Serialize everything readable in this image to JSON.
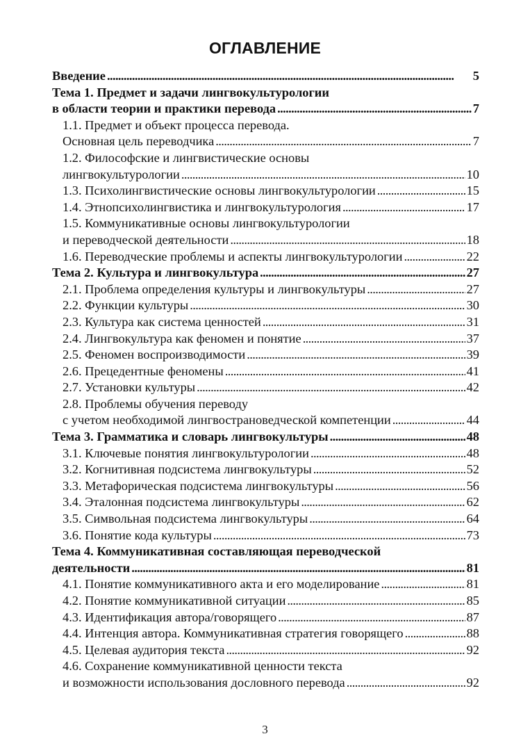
{
  "title": "ОГЛАВЛЕНИЕ",
  "entries": [
    {
      "level": 1,
      "lines": [
        "Введение"
      ],
      "page": "5"
    },
    {
      "level": 1,
      "lines": [
        "Тема 1. Предмет и задачи лингвокультурологии",
        "в области теории и практики перевода"
      ],
      "page": "7"
    },
    {
      "level": 2,
      "lines": [
        "1.1. Предмет и объект процесса перевода.",
        "Основная цель переводчика"
      ],
      "page": "7"
    },
    {
      "level": 2,
      "lines": [
        "1.2. Философские и лингвистические основы",
        "лингвокультурологии"
      ],
      "page": "10"
    },
    {
      "level": 2,
      "lines": [
        "1.3. Психолингвистические основы лингвокультурологии"
      ],
      "page": "15"
    },
    {
      "level": 2,
      "lines": [
        "1.4. Этнопсихолингвистика и лингвокультурология"
      ],
      "page": "17"
    },
    {
      "level": 2,
      "lines": [
        "1.5. Коммуникативные основы лингвокультурологии",
        "и переводческой деятельности"
      ],
      "page": "18"
    },
    {
      "level": 2,
      "lines": [
        "1.6. Переводческие проблемы и аспекты лингвокультурологии"
      ],
      "page": "22"
    },
    {
      "level": 1,
      "lines": [
        "Тема 2. Культура и лингвокультура"
      ],
      "page": "27"
    },
    {
      "level": 2,
      "lines": [
        "2.1. Проблема определения культуры и лингвокультуры"
      ],
      "page": "27"
    },
    {
      "level": 2,
      "lines": [
        "2.2. Функции культуры"
      ],
      "page": "30"
    },
    {
      "level": 2,
      "lines": [
        "2.3. Культура как система ценностей"
      ],
      "page": "31"
    },
    {
      "level": 2,
      "lines": [
        "2.4. Лингвокультура как феномен и понятие"
      ],
      "page": "37"
    },
    {
      "level": 2,
      "lines": [
        "2.5. Феномен воспроизводимости"
      ],
      "page": "39"
    },
    {
      "level": 2,
      "lines": [
        "2.6. Прецедентные феномены"
      ],
      "page": "41"
    },
    {
      "level": 2,
      "lines": [
        "2.7. Установки культуры"
      ],
      "page": "42"
    },
    {
      "level": 2,
      "lines": [
        "2.8. Проблемы обучения переводу",
        "с учетом необходимой лингвострановедческой компетенции"
      ],
      "page": "44"
    },
    {
      "level": 1,
      "lines": [
        "Тема 3. Грамматика и словарь лингвокультуры"
      ],
      "page": "48"
    },
    {
      "level": 2,
      "lines": [
        "3.1. Ключевые понятия лингвокультурологии"
      ],
      "page": "48"
    },
    {
      "level": 2,
      "lines": [
        "3.2. Когнитивная подсистема лингвокультуры"
      ],
      "page": "52"
    },
    {
      "level": 2,
      "lines": [
        "3.3. Метафорическая подсистема лингвокультуры"
      ],
      "page": "56"
    },
    {
      "level": 2,
      "lines": [
        "3.4. Эталонная подсистема лингвокультуры"
      ],
      "page": "62"
    },
    {
      "level": 2,
      "lines": [
        "3.5. Символьная подсистема лингвокультуры"
      ],
      "page": "64"
    },
    {
      "level": 2,
      "lines": [
        "3.6. Понятие кода культуры"
      ],
      "page": "73"
    },
    {
      "level": 1,
      "lines": [
        "Тема 4. Коммуникативная составляющая переводческой",
        "деятельности"
      ],
      "page": "81"
    },
    {
      "level": 2,
      "lines": [
        "4.1. Понятие коммуникативного акта и его моделирование"
      ],
      "page": "81"
    },
    {
      "level": 2,
      "lines": [
        "4.2. Понятие коммуникативной ситуации"
      ],
      "page": "85"
    },
    {
      "level": 2,
      "lines": [
        "4.3. Идентификация автора/говорящего"
      ],
      "page": "87"
    },
    {
      "level": 2,
      "lines": [
        "4.4. Интенция автора. Коммуникативная стратегия говорящего"
      ],
      "page": "88"
    },
    {
      "level": 2,
      "lines": [
        "4.5. Целевая аудитория текста"
      ],
      "page": "92"
    },
    {
      "level": 2,
      "lines": [
        "4.6. Сохранение коммуникативной ценности текста",
        "и возможности использования дословного перевода"
      ],
      "page": "92"
    }
  ],
  "page_number": "3"
}
